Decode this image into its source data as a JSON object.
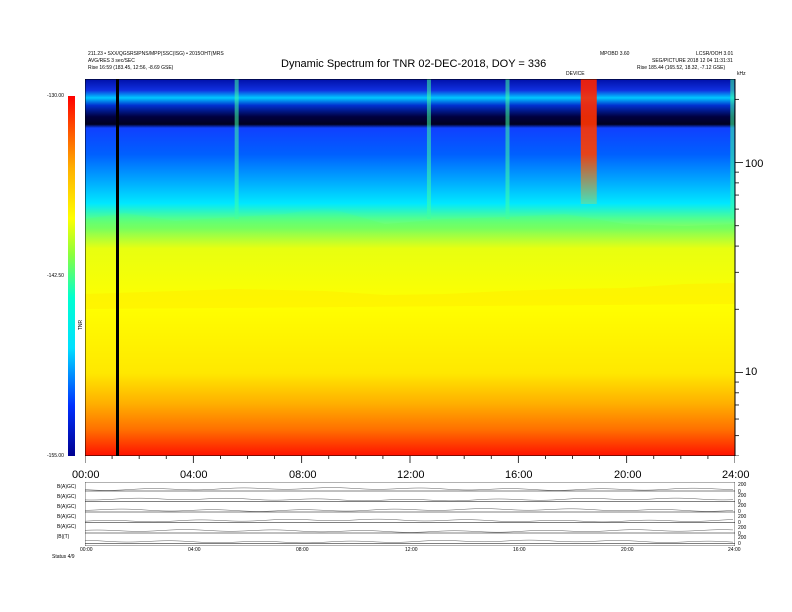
{
  "header": {
    "title": "Dynamic Spectrum for TNR 02-DEC-2018, DOY = 336",
    "left_line1": "211.23 • SXX/QGSRSIPNS/MPP(SSC(ISG) • 2015OHT(MRS",
    "left_line2": "AVG/RES 3 sec/SEC",
    "left_line3": "Rise     16:59 (183.45, 12:56, -8.69 GSE)",
    "right_top_a": "MPOBD 3.60",
    "right_top_b": "LCSR/OOH 3.01",
    "right_line2": "SEG/PICTURE 2018 12 04 11:31:31",
    "right_line3": "Rise     185.44 (165.52, 18.32, -7.12 GSE)",
    "event_label": "DEVICE",
    "right_corner": "kHz"
  },
  "colorbar": {
    "label": "TNR",
    "ticks": [
      "-130.00",
      "-142.50",
      "-155.00"
    ]
  },
  "chart_data": {
    "type": "heatmap",
    "title": "Dynamic Spectrum for TNR 02-DEC-2018, DOY = 336",
    "x_range_hours": [
      0,
      24
    ],
    "x_tick_labels": [
      "00:00",
      "04:00",
      "08:00",
      "12:00",
      "16:00",
      "20:00",
      "24:00"
    ],
    "y_scale": "log",
    "y_range": [
      4,
      250
    ],
    "y_tick_labels": [
      "100",
      "10"
    ],
    "color_range": [
      -155.0,
      -130.0
    ],
    "color_ticks": [
      -130.0,
      -142.5,
      -155.0
    ],
    "vertical_marker_hour": 1.2,
    "bright_events_hours": [
      5.6,
      12.7,
      15.6,
      18.6,
      23.9
    ],
    "lower_panel_labels": [
      "B(A)GC)",
      "B(A)GC)",
      "B(A)GC)",
      "B(A)GC)",
      "B(A)GC)",
      "|B|(T)"
    ],
    "lower_panel_right_ticks": [
      "200",
      "0",
      "200",
      "0",
      "200",
      "0",
      "200",
      "0",
      "200",
      "0",
      "200",
      "0"
    ],
    "lower_axis_ticks": [
      "00:00",
      "04:00",
      "08:00",
      "12:00",
      "16:00",
      "20:00",
      "24:00"
    ],
    "lower_axis_left_label": "Status   4/9"
  }
}
